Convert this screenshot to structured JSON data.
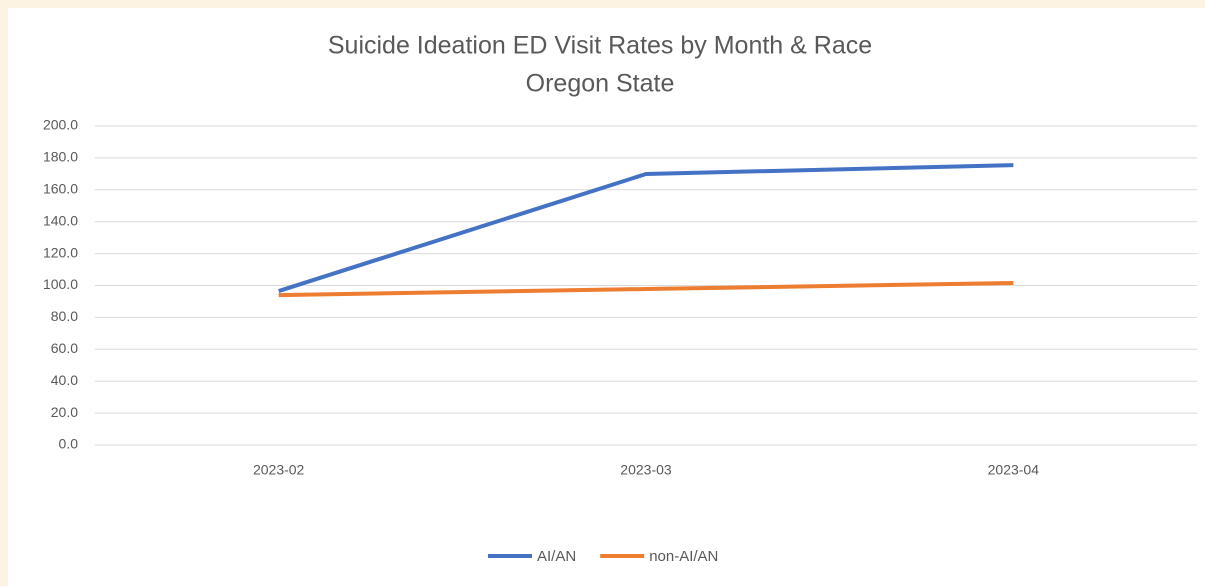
{
  "chart_data": {
    "type": "line",
    "title": "Suicide Ideation ED Visit Rates by Month & Race",
    "subtitle": "Oregon State",
    "categories": [
      "2023-02",
      "2023-03",
      "2023-04"
    ],
    "series": [
      {
        "name": "AI/AN",
        "color": "#4472c4",
        "values": [
          96.5,
          169.9,
          175.5
        ]
      },
      {
        "name": "non-AI/AN",
        "color": "#ed7d31",
        "values": [
          94.0,
          97.8,
          101.6
        ]
      }
    ],
    "ylim": [
      0,
      200
    ],
    "yticks": [
      {
        "value": 0,
        "label": "0.0"
      },
      {
        "value": 20,
        "label": "20.0"
      },
      {
        "value": 40,
        "label": "40.0"
      },
      {
        "value": 60,
        "label": "60.0"
      },
      {
        "value": 80,
        "label": "80.0"
      },
      {
        "value": 100,
        "label": "100.0"
      },
      {
        "value": 120,
        "label": "120.0"
      },
      {
        "value": 140,
        "label": "140.0"
      },
      {
        "value": 160,
        "label": "160.0"
      },
      {
        "value": 180,
        "label": "180.0"
      },
      {
        "value": 200,
        "label": "200.0"
      }
    ],
    "grid": true,
    "legend": "bottom"
  }
}
